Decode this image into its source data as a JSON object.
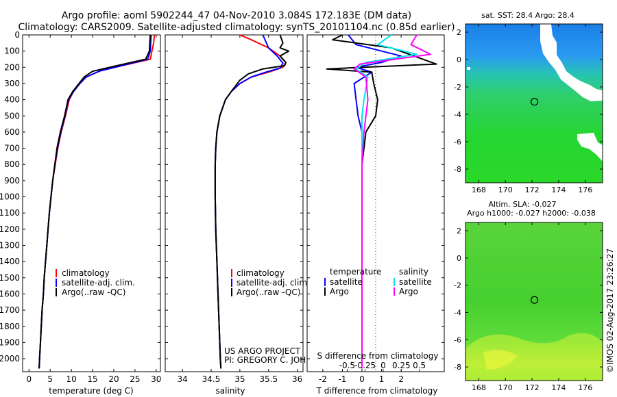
{
  "title_line1": "Argo profile: aoml 5902244_47 04-Nov-2010 3.084S 172.183E (DM data)",
  "title_line2": "Climatology: CARS2009. Satellite-adjusted climatology: synTS_20101104.nc (0.85d earlier)",
  "colors": {
    "clim": "#ff0000",
    "sat": "#0000ff",
    "argo": "#000000",
    "sal_sat": "#00e5ee",
    "sal_argo": "#ff00ff"
  },
  "chart_data": [
    {
      "type": "line",
      "id": "temperature",
      "xlabel": "temperature (deg C)",
      "ylabel": "",
      "xlim": [
        -1.5,
        31
      ],
      "ylim": [
        2080,
        0
      ],
      "xticks": [
        0,
        5,
        10,
        15,
        20,
        25,
        30
      ],
      "yticks": [
        0,
        100,
        200,
        300,
        400,
        500,
        600,
        700,
        800,
        900,
        1000,
        1100,
        1200,
        1300,
        1400,
        1500,
        1600,
        1700,
        1800,
        1900,
        2000
      ],
      "legend": [
        "climatology",
        "satellite-adj. clim.",
        "Argo(..raw -QC)"
      ],
      "series": [
        {
          "name": "climatology",
          "color": "clim",
          "points": [
            [
              29.6,
              0
            ],
            [
              29.4,
              50
            ],
            [
              29.0,
              100
            ],
            [
              28.6,
              150
            ],
            [
              22,
              190
            ],
            [
              17,
              220
            ],
            [
              13.5,
              260
            ],
            [
              12.0,
              300
            ],
            [
              10.5,
              350
            ],
            [
              9.5,
              400
            ],
            [
              8.6,
              500
            ],
            [
              7.6,
              600
            ],
            [
              6.8,
              700
            ],
            [
              6.2,
              800
            ],
            [
              5.6,
              900
            ],
            [
              5.2,
              1000
            ],
            [
              4.8,
              1100
            ],
            [
              4.5,
              1200
            ],
            [
              4.2,
              1300
            ],
            [
              3.9,
              1400
            ],
            [
              3.6,
              1500
            ],
            [
              3.4,
              1600
            ],
            [
              3.1,
              1700
            ],
            [
              2.9,
              1800
            ],
            [
              2.7,
              1900
            ],
            [
              2.5,
              2000
            ],
            [
              2.4,
              2060
            ]
          ]
        },
        {
          "name": "satellite-adj. clim.",
          "color": "sat",
          "points": [
            [
              28.8,
              0
            ],
            [
              28.7,
              50
            ],
            [
              28.6,
              100
            ],
            [
              28.0,
              150
            ],
            [
              21,
              195
            ],
            [
              16.5,
              225
            ],
            [
              13.5,
              260
            ],
            [
              12.0,
              300
            ],
            [
              10.5,
              350
            ],
            [
              9.3,
              400
            ],
            [
              8.5,
              500
            ],
            [
              7.5,
              600
            ],
            [
              6.7,
              700
            ],
            [
              6.1,
              800
            ],
            [
              5.6,
              900
            ],
            [
              5.2,
              1000
            ],
            [
              4.8,
              1100
            ],
            [
              4.5,
              1200
            ],
            [
              4.2,
              1300
            ],
            [
              3.9,
              1400
            ],
            [
              3.6,
              1500
            ],
            [
              3.4,
              1600
            ],
            [
              3.1,
              1700
            ],
            [
              2.9,
              1800
            ],
            [
              2.7,
              1900
            ],
            [
              2.5,
              2000
            ],
            [
              2.4,
              2060
            ]
          ]
        },
        {
          "name": "Argo(..raw -QC)",
          "color": "argo",
          "points": [
            [
              28.6,
              0
            ],
            [
              28.5,
              50
            ],
            [
              28.4,
              100
            ],
            [
              27.5,
              150
            ],
            [
              19,
              200
            ],
            [
              15,
              225
            ],
            [
              13.0,
              260
            ],
            [
              11.8,
              300
            ],
            [
              10.3,
              350
            ],
            [
              9.2,
              400
            ],
            [
              8.4,
              500
            ],
            [
              7.4,
              600
            ],
            [
              6.6,
              700
            ],
            [
              6.1,
              800
            ],
            [
              5.6,
              900
            ],
            [
              5.2,
              1000
            ],
            [
              4.8,
              1100
            ],
            [
              4.5,
              1200
            ],
            [
              4.2,
              1300
            ],
            [
              3.9,
              1400
            ],
            [
              3.6,
              1500
            ],
            [
              3.4,
              1600
            ],
            [
              3.1,
              1700
            ],
            [
              2.9,
              1800
            ],
            [
              2.7,
              1900
            ],
            [
              2.5,
              2000
            ],
            [
              2.4,
              2060
            ]
          ]
        }
      ]
    },
    {
      "type": "line",
      "id": "salinity",
      "xlabel": "salinity",
      "ylabel": "",
      "xlim": [
        33.7,
        36.1
      ],
      "ylim": [
        2080,
        0
      ],
      "xticks": [
        34,
        34.5,
        35,
        35.5,
        36
      ],
      "xtick_labels": [
        "34",
        "34.5",
        "35",
        "35.5",
        "36"
      ],
      "legend": [
        "climatology",
        "satellite-adj. clim.",
        "Argo(..raw -QC)"
      ],
      "annotation": [
        "US ARGO PROJECT",
        "PI: GREGORY C. JOHNSON"
      ],
      "series": [
        {
          "name": "climatology",
          "color": "clim",
          "points": [
            [
              35.0,
              0
            ],
            [
              35.2,
              30
            ],
            [
              35.5,
              80
            ],
            [
              35.7,
              130
            ],
            [
              35.8,
              170
            ],
            [
              35.75,
              200
            ],
            [
              35.5,
              230
            ],
            [
              35.2,
              260
            ],
            [
              35.0,
              300
            ],
            [
              34.85,
              350
            ],
            [
              34.75,
              400
            ],
            [
              34.65,
              500
            ],
            [
              34.6,
              600
            ],
            [
              34.58,
              700
            ],
            [
              34.57,
              800
            ],
            [
              34.57,
              1000
            ],
            [
              34.58,
              1200
            ],
            [
              34.6,
              1400
            ],
            [
              34.62,
              1600
            ],
            [
              34.64,
              1800
            ],
            [
              34.66,
              2000
            ],
            [
              34.67,
              2060
            ]
          ]
        },
        {
          "name": "satellite-adj. clim.",
          "color": "sat",
          "points": [
            [
              35.4,
              0
            ],
            [
              35.45,
              40
            ],
            [
              35.5,
              80
            ],
            [
              35.65,
              130
            ],
            [
              35.75,
              175
            ],
            [
              35.7,
              205
            ],
            [
              35.45,
              230
            ],
            [
              35.2,
              260
            ],
            [
              35.0,
              300
            ],
            [
              34.85,
              350
            ],
            [
              34.75,
              400
            ],
            [
              34.65,
              500
            ],
            [
              34.6,
              600
            ],
            [
              34.58,
              700
            ],
            [
              34.57,
              800
            ],
            [
              34.57,
              1000
            ],
            [
              34.58,
              1200
            ],
            [
              34.6,
              1400
            ],
            [
              34.62,
              1600
            ],
            [
              34.64,
              1800
            ],
            [
              34.66,
              2000
            ],
            [
              34.67,
              2060
            ]
          ]
        },
        {
          "name": "Argo(..raw -QC)",
          "color": "argo",
          "points": [
            [
              35.7,
              0
            ],
            [
              35.75,
              50
            ],
            [
              35.7,
              80
            ],
            [
              35.85,
              100
            ],
            [
              35.7,
              130
            ],
            [
              35.8,
              170
            ],
            [
              35.78,
              190
            ],
            [
              35.4,
              210
            ],
            [
              35.15,
              240
            ],
            [
              35.0,
              280
            ],
            [
              34.85,
              350
            ],
            [
              34.75,
              400
            ],
            [
              34.65,
              500
            ],
            [
              34.6,
              600
            ],
            [
              34.58,
              700
            ],
            [
              34.57,
              800
            ],
            [
              34.57,
              1000
            ],
            [
              34.58,
              1200
            ],
            [
              34.6,
              1400
            ],
            [
              34.62,
              1600
            ],
            [
              34.64,
              1800
            ],
            [
              34.66,
              2000
            ],
            [
              34.67,
              2060
            ]
          ]
        }
      ]
    },
    {
      "type": "line",
      "id": "differences",
      "xlabel": "T difference from climatology",
      "xlabel_top": "S difference from climatology",
      "xlim": [
        -2.8,
        4.2
      ],
      "ylim": [
        2080,
        0
      ],
      "xticks": [
        -2,
        -1,
        0,
        1,
        2
      ],
      "top_ticks": [
        -0.5,
        -0.25,
        0,
        0.25,
        0.5
      ],
      "top_tick_labels": [
        "-0.5",
        "-0.25",
        "0",
        "0.25",
        "0.5"
      ],
      "legend_temperature": {
        "title": "temperature",
        "items": [
          "satellite",
          "Argo"
        ]
      },
      "legend_salinity": {
        "title": "salinity",
        "items": [
          "satellite",
          "Argo"
        ]
      },
      "series": [
        {
          "name": "T satellite",
          "color": "sat",
          "points": [
            [
              -0.7,
              0
            ],
            [
              -0.3,
              60
            ],
            [
              2.0,
              130
            ],
            [
              1.0,
              170
            ],
            [
              -0.3,
              200
            ],
            [
              0.5,
              230
            ],
            [
              -0.4,
              300
            ],
            [
              -0.3,
              400
            ],
            [
              -0.2,
              500
            ],
            [
              0,
              600
            ],
            [
              0,
              700
            ],
            [
              0,
              800
            ],
            [
              0,
              900
            ],
            [
              0,
              1000
            ],
            [
              0,
              1200
            ],
            [
              0,
              1400
            ],
            [
              0,
              1600
            ],
            [
              0,
              1800
            ],
            [
              0,
              2000
            ],
            [
              0,
              2060
            ]
          ]
        },
        {
          "name": "T Argo",
          "color": "argo",
          "points": [
            [
              -1.0,
              0
            ],
            [
              -1.5,
              30
            ],
            [
              1.5,
              80
            ],
            [
              3.8,
              180
            ],
            [
              -1.8,
              210
            ],
            [
              0.5,
              230
            ],
            [
              0.6,
              300
            ],
            [
              0.8,
              400
            ],
            [
              0.7,
              500
            ],
            [
              0.2,
              600
            ],
            [
              0.1,
              700
            ],
            [
              0,
              800
            ],
            [
              0,
              1000
            ],
            [
              0,
              1200
            ],
            [
              0,
              1400
            ],
            [
              0,
              1600
            ],
            [
              0,
              1800
            ],
            [
              0,
              2000
            ],
            [
              0,
              2060
            ]
          ]
        },
        {
          "name": "S satellite",
          "color": "sal_sat",
          "points": [
            [
              1.5,
              0
            ],
            [
              0.8,
              60
            ],
            [
              2.8,
              120
            ],
            [
              0.2,
              170
            ],
            [
              -0.3,
              210
            ],
            [
              0.3,
              260
            ],
            [
              0.1,
              400
            ],
            [
              0,
              500
            ],
            [
              0,
              700
            ],
            [
              0,
              1000
            ],
            [
              0,
              1400
            ],
            [
              0,
              1800
            ],
            [
              0,
              2060
            ]
          ]
        },
        {
          "name": "S Argo",
          "color": "sal_argo",
          "points": [
            [
              2.8,
              0
            ],
            [
              2.5,
              60
            ],
            [
              3.5,
              120
            ],
            [
              -0.1,
              180
            ],
            [
              -0.4,
              210
            ],
            [
              0.2,
              260
            ],
            [
              0.3,
              400
            ],
            [
              0.1,
              600
            ],
            [
              0,
              800
            ],
            [
              0,
              1000
            ],
            [
              0,
              1400
            ],
            [
              0,
              1800
            ],
            [
              0,
              2060
            ]
          ]
        }
      ]
    },
    {
      "type": "heatmap",
      "id": "sst_map",
      "title": "sat. SST: 28.4  Argo: 28.4",
      "xticks": [
        168,
        170,
        172,
        174,
        176
      ],
      "yticks": [
        2,
        0,
        -2,
        -4,
        -6,
        -8
      ],
      "xlim": [
        167,
        177.3
      ],
      "ylim": [
        -9,
        2.6
      ],
      "marker": [
        172.183,
        -3.084
      ]
    },
    {
      "type": "heatmap",
      "id": "sla_map",
      "title": "Altim. SLA: -0.027",
      "subtitle": "Argo h1000: -0.027 h2000: -0.038",
      "xticks": [
        168,
        170,
        172,
        174,
        176
      ],
      "yticks": [
        2,
        0,
        -2,
        -4,
        -6,
        -8
      ],
      "xlim": [
        167,
        177.3
      ],
      "ylim": [
        -9,
        2.6
      ],
      "marker": [
        172.183,
        -3.084
      ]
    }
  ],
  "side_label": "©IMOS 02-Aug-2017 23:26:27"
}
